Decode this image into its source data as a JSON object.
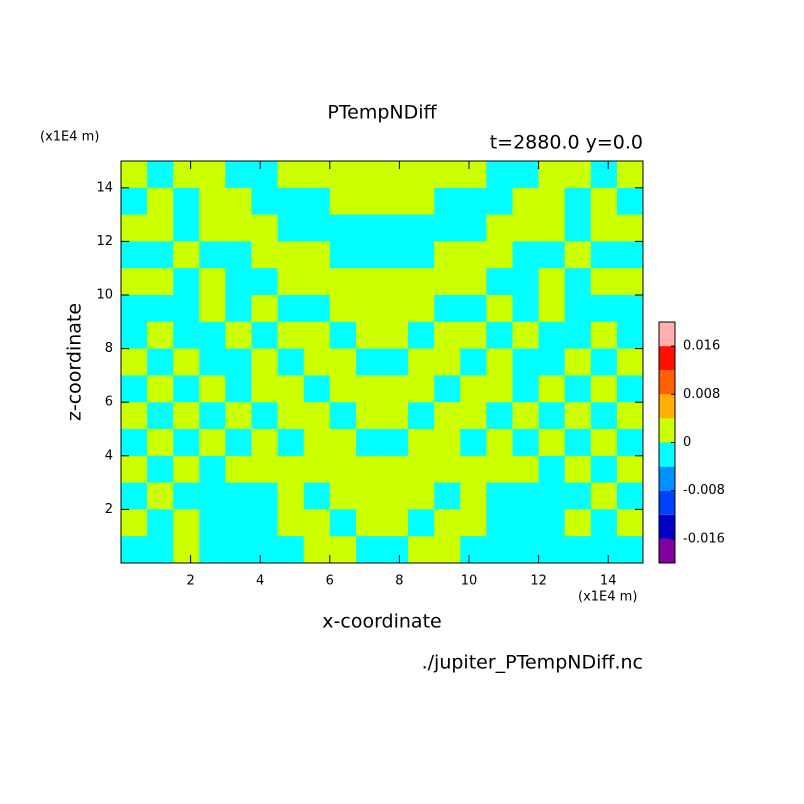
{
  "chart_data": {
    "type": "contour",
    "title": "PTempNDiff",
    "subtitle": "t=2880.0 y=0.0",
    "x_label": "x-coordinate",
    "y_label": "z-coordinate",
    "x_unit": "(x1E4 m)",
    "y_unit": "(x1E4 m)",
    "source": "./jupiter_PTempNDiff.nc",
    "xlim": [
      0,
      15
    ],
    "ylim": [
      0,
      15
    ],
    "xticks": [
      2,
      4,
      6,
      8,
      10,
      12,
      14
    ],
    "yticks": [
      2,
      4,
      6,
      8,
      10,
      12,
      14
    ],
    "levels": [
      -0.02,
      -0.016,
      -0.012,
      -0.008,
      -0.004,
      0,
      0.004,
      0.008,
      0.012,
      0.016,
      0.02
    ],
    "colors": [
      "#8000a0",
      "#0000c8",
      "#0040ff",
      "#0090ff",
      "#00ffff",
      "#ccff00",
      "#ffb000",
      "#ff6000",
      "#ff1000",
      "#ffb0b0"
    ],
    "colorbar_ticks": [
      -0.016,
      -0.008,
      0,
      0.008,
      0.016
    ],
    "x": [
      0.375,
      1.125,
      1.875,
      2.625,
      3.375,
      4.125,
      4.875,
      5.625,
      6.375,
      7.125,
      7.875,
      8.625,
      9.375,
      10.125,
      10.875,
      11.625,
      12.375,
      13.125,
      13.875,
      14.625
    ],
    "y": [
      14.5,
      13.5,
      12.5,
      11.5,
      10.5,
      9.5,
      8.5,
      7.5,
      6.5,
      5.5,
      4.5,
      3.5,
      2.5,
      1.5,
      0.5
    ],
    "z": [
      [
        0.002,
        -0.002,
        0.002,
        0.002,
        -0.002,
        -0.002,
        0.002,
        0.002,
        0.002,
        0.002,
        0.002,
        0.002,
        0.002,
        0.002,
        -0.002,
        -0.002,
        0.002,
        0.002,
        -0.002,
        0.002
      ],
      [
        -0.002,
        0.002,
        -0.002,
        0.002,
        0.002,
        -0.002,
        -0.002,
        -0.002,
        0.002,
        0.002,
        0.002,
        0.002,
        -0.002,
        -0.002,
        -0.002,
        0.002,
        0.002,
        -0.002,
        0.002,
        -0.002
      ],
      [
        0.002,
        0.002,
        -0.002,
        0.002,
        0.002,
        0.002,
        -0.002,
        -0.002,
        -0.002,
        -0.002,
        -0.002,
        -0.002,
        -0.002,
        -0.002,
        0.002,
        0.002,
        0.002,
        -0.002,
        0.002,
        0.002
      ],
      [
        -0.002,
        -0.002,
        0.002,
        -0.002,
        -0.002,
        0.002,
        0.002,
        0.002,
        -0.002,
        -0.002,
        -0.002,
        -0.002,
        0.002,
        0.002,
        0.002,
        -0.002,
        -0.002,
        0.002,
        -0.002,
        -0.002
      ],
      [
        0.002,
        0.002,
        -0.002,
        0.002,
        -0.002,
        -0.002,
        0.002,
        0.002,
        0.002,
        0.002,
        0.002,
        0.002,
        0.002,
        0.002,
        -0.002,
        -0.002,
        0.002,
        -0.002,
        0.002,
        0.002
      ],
      [
        -0.002,
        -0.002,
        -0.002,
        0.002,
        -0.002,
        0.002,
        -0.002,
        -0.002,
        0.002,
        0.002,
        0.002,
        0.002,
        -0.002,
        -0.002,
        0.002,
        -0.002,
        0.002,
        -0.002,
        -0.002,
        -0.002
      ],
      [
        -0.002,
        0.002,
        -0.002,
        -0.002,
        0.002,
        -0.002,
        0.002,
        0.002,
        -0.002,
        0.002,
        0.002,
        -0.002,
        0.002,
        0.002,
        -0.002,
        0.002,
        -0.002,
        -0.002,
        0.002,
        -0.002
      ],
      [
        0.002,
        -0.002,
        0.002,
        -0.002,
        -0.002,
        0.002,
        -0.002,
        0.002,
        0.002,
        -0.002,
        -0.002,
        0.002,
        0.002,
        -0.002,
        0.002,
        -0.002,
        -0.002,
        0.002,
        -0.002,
        0.002
      ],
      [
        -0.002,
        0.002,
        -0.002,
        0.002,
        -0.002,
        0.002,
        0.002,
        -0.002,
        0.002,
        0.002,
        0.002,
        0.002,
        -0.002,
        0.002,
        0.002,
        -0.002,
        0.002,
        -0.002,
        0.002,
        -0.002
      ],
      [
        0.002,
        -0.002,
        0.002,
        -0.002,
        0.002,
        -0.002,
        0.002,
        0.002,
        -0.002,
        0.002,
        0.002,
        -0.002,
        0.002,
        0.002,
        -0.002,
        0.002,
        -0.002,
        0.002,
        -0.002,
        0.002
      ],
      [
        -0.002,
        0.002,
        -0.002,
        0.002,
        -0.002,
        0.002,
        -0.002,
        0.002,
        0.002,
        -0.002,
        -0.002,
        0.002,
        0.002,
        -0.002,
        0.002,
        -0.002,
        0.002,
        -0.002,
        0.002,
        -0.002
      ],
      [
        0.002,
        -0.002,
        0.002,
        -0.002,
        0.002,
        0.002,
        0.002,
        0.002,
        0.002,
        0.002,
        0.002,
        0.002,
        0.002,
        0.002,
        0.002,
        0.002,
        -0.002,
        0.002,
        -0.002,
        0.002
      ],
      [
        -0.002,
        0.002,
        -0.002,
        -0.002,
        -0.002,
        -0.002,
        0.002,
        -0.002,
        0.002,
        0.002,
        0.002,
        0.002,
        -0.002,
        0.002,
        -0.002,
        -0.002,
        -0.002,
        -0.002,
        0.002,
        -0.002
      ],
      [
        0.002,
        -0.002,
        0.002,
        -0.002,
        -0.002,
        -0.002,
        0.002,
        0.002,
        -0.002,
        0.002,
        0.002,
        -0.002,
        0.002,
        0.002,
        -0.002,
        -0.002,
        -0.002,
        0.002,
        -0.002,
        0.002
      ],
      [
        -0.002,
        -0.002,
        0.002,
        -0.002,
        -0.002,
        -0.002,
        -0.002,
        0.002,
        0.002,
        -0.002,
        -0.002,
        0.002,
        0.002,
        -0.002,
        -0.002,
        -0.002,
        -0.002,
        -0.002,
        -0.002,
        -0.002
      ]
    ]
  }
}
